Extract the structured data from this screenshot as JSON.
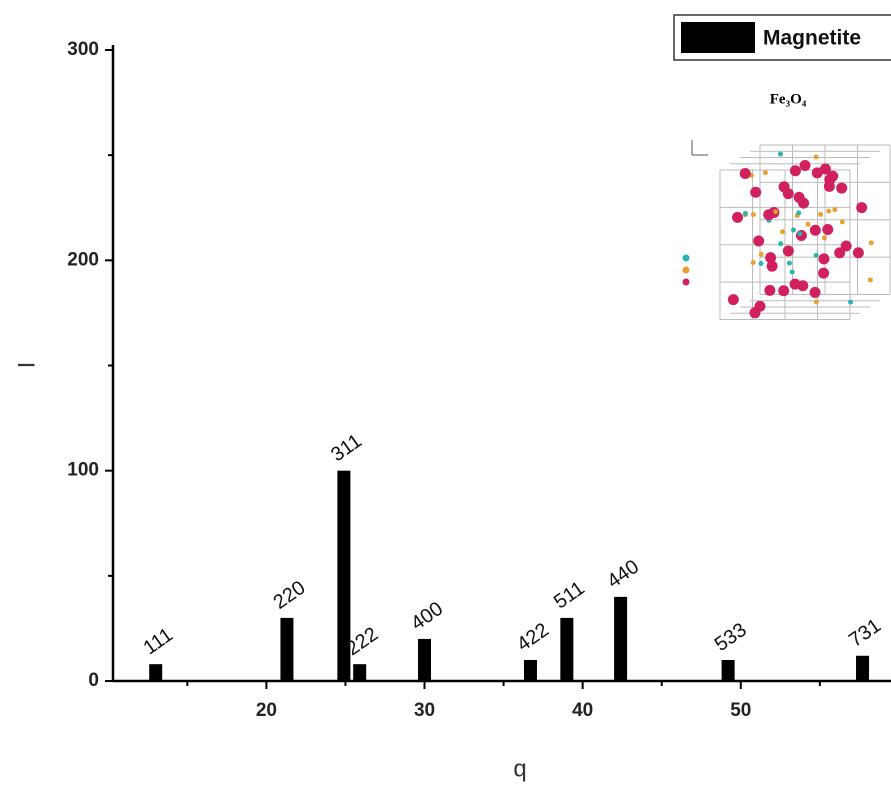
{
  "chart_data": {
    "type": "bar",
    "x_label": "q",
    "y_label": "I",
    "x": [
      13.0,
      21.3,
      24.9,
      25.9,
      30.0,
      36.7,
      39.0,
      42.4,
      49.2,
      57.7
    ],
    "labels": [
      "111",
      "220",
      "311",
      "222",
      "400",
      "422",
      "511",
      "440",
      "533",
      "731"
    ],
    "series": [
      {
        "name": "Magnetite",
        "color": "#000000",
        "values": [
          8,
          30,
          100,
          8,
          20,
          10,
          30,
          40,
          10,
          12
        ]
      }
    ],
    "xlim": [
      10.3,
      59.5
    ],
    "ylim": [
      0,
      300
    ],
    "xticks": [
      20,
      30,
      40,
      50
    ],
    "yticks": [
      0,
      100,
      200,
      300
    ],
    "x_minor_ticks": [
      15,
      25,
      35,
      45,
      55
    ],
    "y_minor_ticks": [
      50,
      150,
      250
    ],
    "legend": "top-right",
    "inset_title": "Fe₃O₄"
  }
}
